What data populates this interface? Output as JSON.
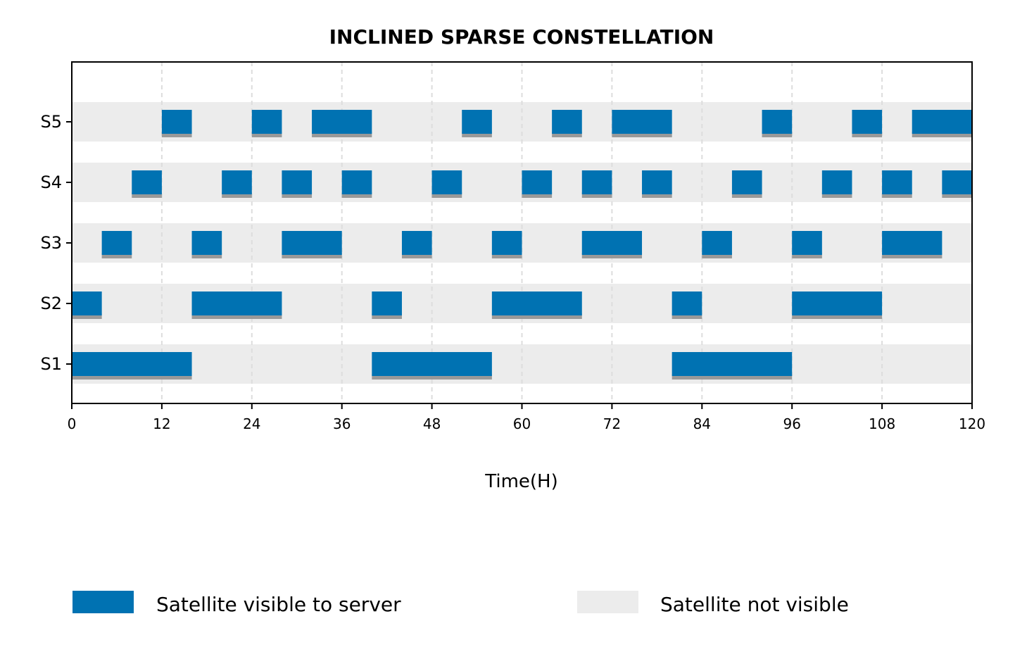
{
  "chart_data": {
    "type": "timeline",
    "title": "INCLINED SPARSE CONSTELLATION",
    "xlabel": "Time(H)",
    "ylabel": "",
    "xlim": [
      0,
      120
    ],
    "xticks": [
      0,
      12,
      24,
      36,
      48,
      60,
      72,
      84,
      96,
      108,
      120
    ],
    "categories": [
      "S1",
      "S2",
      "S3",
      "S4",
      "S5"
    ],
    "grid": "vertical dashed",
    "legend_placement": "bottom",
    "series": [
      {
        "name": "S1",
        "visible_intervals": [
          [
            0,
            16
          ],
          [
            40,
            56
          ],
          [
            80,
            96
          ]
        ]
      },
      {
        "name": "S2",
        "visible_intervals": [
          [
            0,
            4
          ],
          [
            16,
            28
          ],
          [
            40,
            44
          ],
          [
            56,
            68
          ],
          [
            80,
            84
          ],
          [
            96,
            108
          ]
        ]
      },
      {
        "name": "S3",
        "visible_intervals": [
          [
            4,
            8
          ],
          [
            16,
            20
          ],
          [
            28,
            36
          ],
          [
            44,
            48
          ],
          [
            56,
            60
          ],
          [
            68,
            76
          ],
          [
            84,
            88
          ],
          [
            96,
            100
          ],
          [
            108,
            116
          ]
        ]
      },
      {
        "name": "S4",
        "visible_intervals": [
          [
            8,
            12
          ],
          [
            20,
            24
          ],
          [
            28,
            32
          ],
          [
            36,
            40
          ],
          [
            48,
            52
          ],
          [
            60,
            64
          ],
          [
            68,
            72
          ],
          [
            76,
            80
          ],
          [
            88,
            92
          ],
          [
            100,
            104
          ],
          [
            108,
            112
          ],
          [
            116,
            120
          ]
        ]
      },
      {
        "name": "S5",
        "visible_intervals": [
          [
            12,
            16
          ],
          [
            24,
            28
          ],
          [
            32,
            40
          ],
          [
            52,
            56
          ],
          [
            64,
            68
          ],
          [
            72,
            80
          ],
          [
            92,
            96
          ],
          [
            104,
            108
          ],
          [
            112,
            120
          ]
        ]
      }
    ],
    "legend": [
      {
        "label": "Satellite visible to server",
        "color": "#0072b2"
      },
      {
        "label": "Satellite not visible",
        "color": "#ececec"
      }
    ],
    "colors": {
      "visible": "#0072b2",
      "visible_shadow": "#999999",
      "not_visible": "#ececec",
      "grid": "#dddddd"
    }
  }
}
